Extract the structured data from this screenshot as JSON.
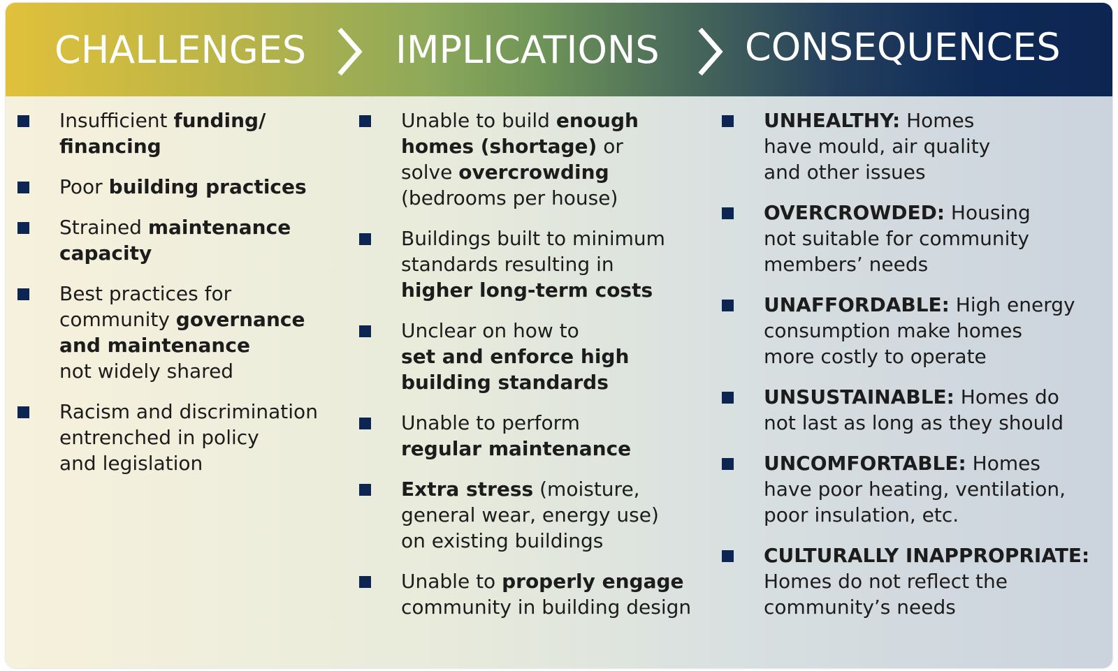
{
  "header": {
    "challenges_title": "CHALLENGES",
    "implications_title": "IMPLICATIONS",
    "consequences_title": "CONSEQUENCES"
  },
  "challenges": [
    {
      "lines": [
        [
          {
            "t": "Insufficient ",
            "b": false
          },
          {
            "t": "funding/",
            "b": true
          }
        ],
        [
          {
            "t": "financing",
            "b": true
          }
        ]
      ]
    },
    {
      "lines": [
        [
          {
            "t": "Poor ",
            "b": false
          },
          {
            "t": "building practices",
            "b": true
          }
        ]
      ]
    },
    {
      "lines": [
        [
          {
            "t": "Strained ",
            "b": false
          },
          {
            "t": "maintenance",
            "b": true
          }
        ],
        [
          {
            "t": "capacity",
            "b": true
          }
        ]
      ]
    },
    {
      "lines": [
        [
          {
            "t": "Best practices for",
            "b": false
          }
        ],
        [
          {
            "t": "community ",
            "b": false
          },
          {
            "t": "governance",
            "b": true
          }
        ],
        [
          {
            "t": "and maintenance",
            "b": true
          }
        ],
        [
          {
            "t": "not widely shared",
            "b": false
          }
        ]
      ]
    },
    {
      "lines": [
        [
          {
            "t": "Racism and discrimination",
            "b": false
          }
        ],
        [
          {
            "t": "entrenched in policy",
            "b": false
          }
        ],
        [
          {
            "t": "and legislation",
            "b": false
          }
        ]
      ]
    }
  ],
  "implications": [
    {
      "lines": [
        [
          {
            "t": "Unable to build ",
            "b": false
          },
          {
            "t": "enough",
            "b": true
          }
        ],
        [
          {
            "t": "homes (shortage)",
            "b": true
          },
          {
            "t": " or",
            "b": false
          }
        ],
        [
          {
            "t": "solve ",
            "b": false
          },
          {
            "t": "overcrowding",
            "b": true
          }
        ],
        [
          {
            "t": "(bedrooms per house)",
            "b": false
          }
        ]
      ]
    },
    {
      "lines": [
        [
          {
            "t": "Buildings built to minimum",
            "b": false
          }
        ],
        [
          {
            "t": "standards resulting in",
            "b": false
          }
        ],
        [
          {
            "t": "higher long-term costs",
            "b": true
          }
        ]
      ]
    },
    {
      "lines": [
        [
          {
            "t": "Unclear on how to",
            "b": false
          }
        ],
        [
          {
            "t": "set and enforce high",
            "b": true
          }
        ],
        [
          {
            "t": "building standards",
            "b": true
          }
        ]
      ]
    },
    {
      "lines": [
        [
          {
            "t": "Unable to perform",
            "b": false
          }
        ],
        [
          {
            "t": "regular maintenance",
            "b": true
          }
        ]
      ]
    },
    {
      "lines": [
        [
          {
            "t": "Extra stress",
            "b": true
          },
          {
            "t": " (moisture,",
            "b": false
          }
        ],
        [
          {
            "t": "general wear, energy use)",
            "b": false
          }
        ],
        [
          {
            "t": "on existing buildings",
            "b": false
          }
        ]
      ]
    },
    {
      "lines": [
        [
          {
            "t": "Unable to ",
            "b": false
          },
          {
            "t": "properly engage",
            "b": true
          }
        ],
        [
          {
            "t": "community in building design",
            "b": false
          }
        ]
      ]
    }
  ],
  "consequences": [
    {
      "lines": [
        [
          {
            "t": "UNHEALTHY:",
            "b": true
          },
          {
            "t": " Homes",
            "b": false
          }
        ],
        [
          {
            "t": "have mould, air quality",
            "b": false
          }
        ],
        [
          {
            "t": "and other issues",
            "b": false
          }
        ]
      ]
    },
    {
      "lines": [
        [
          {
            "t": "OVERCROWDED:",
            "b": true
          },
          {
            "t": " Housing",
            "b": false
          }
        ],
        [
          {
            "t": "not suitable for community",
            "b": false
          }
        ],
        [
          {
            "t": "members’ needs",
            "b": false
          }
        ]
      ]
    },
    {
      "lines": [
        [
          {
            "t": "UNAFFORDABLE:",
            "b": true
          },
          {
            "t": " High energy",
            "b": false
          }
        ],
        [
          {
            "t": "consumption make homes",
            "b": false
          }
        ],
        [
          {
            "t": "more costly to operate",
            "b": false
          }
        ]
      ]
    },
    {
      "lines": [
        [
          {
            "t": "UNSUSTAINABLE:",
            "b": true
          },
          {
            "t": " Homes do",
            "b": false
          }
        ],
        [
          {
            "t": "not last as long as they should",
            "b": false
          }
        ]
      ]
    },
    {
      "lines": [
        [
          {
            "t": "UNCOMFORTABLE:",
            "b": true
          },
          {
            "t": " Homes",
            "b": false
          }
        ],
        [
          {
            "t": "have poor heating, ventilation,",
            "b": false
          }
        ],
        [
          {
            "t": "poor insulation, etc.",
            "b": false
          }
        ]
      ]
    },
    {
      "lines": [
        [
          {
            "t": "CULTURALLY INAPPROPRIATE:",
            "b": true
          }
        ],
        [
          {
            "t": "Homes do not reflect the",
            "b": false
          }
        ],
        [
          {
            "t": "community’s needs",
            "b": false
          }
        ]
      ]
    }
  ]
}
